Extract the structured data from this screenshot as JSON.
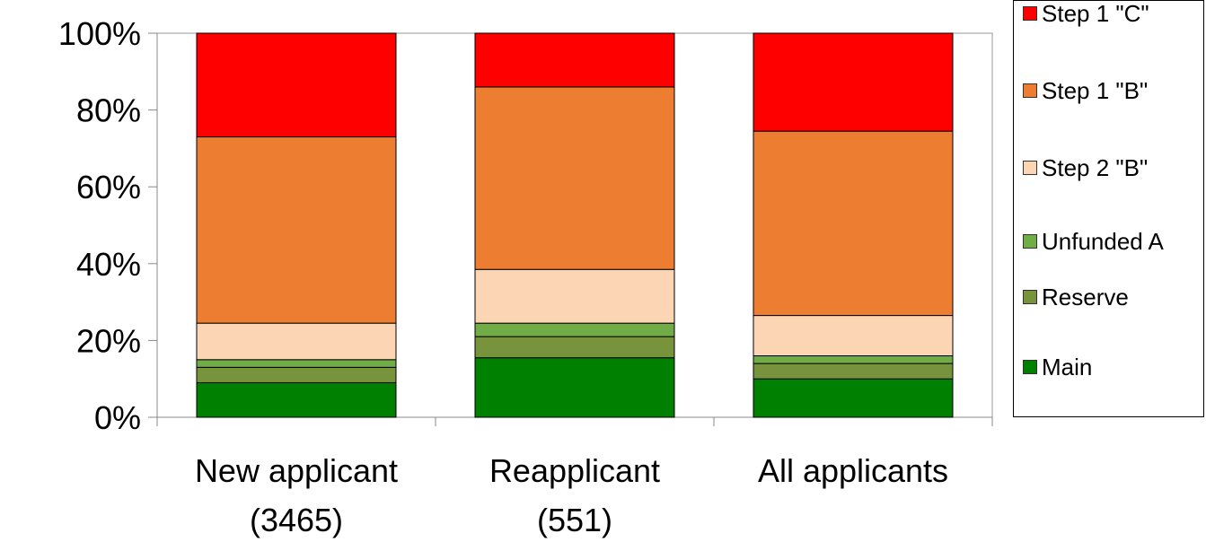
{
  "chart_data": {
    "type": "stacked_bar",
    "categories": [
      [
        "New applicant",
        "(3465)"
      ],
      [
        "Reapplicant",
        "(551)"
      ],
      [
        "All applicants"
      ]
    ],
    "series": [
      {
        "name": "Main",
        "color": "#008000",
        "values": [
          9,
          15.5,
          10
        ]
      },
      {
        "name": "Reserve",
        "color": "#77933c",
        "values": [
          4,
          5.5,
          4
        ]
      },
      {
        "name": "Unfunded A",
        "color": "#70ad47",
        "values": [
          2,
          3.5,
          2
        ]
      },
      {
        "name": "Step 2 \"B\"",
        "color": "#fcd5b5",
        "values": [
          9.5,
          14,
          10.5
        ]
      },
      {
        "name": "Step 1 \"B\"",
        "color": "#ed7d31",
        "values": [
          48.5,
          47.5,
          48
        ]
      },
      {
        "name": "Step 1 \"C\"",
        "color": "#ff0000",
        "values": [
          27,
          14,
          25.5
        ]
      }
    ],
    "ylim": [
      0,
      100
    ],
    "yticks": [
      {
        "value": 0,
        "label": "0%"
      },
      {
        "value": 20,
        "label": "20%"
      },
      {
        "value": 40,
        "label": "40%"
      },
      {
        "value": 60,
        "label": "60%"
      },
      {
        "value": 80,
        "label": "80%"
      },
      {
        "value": 100,
        "label": "100%"
      }
    ],
    "legend": "right"
  }
}
